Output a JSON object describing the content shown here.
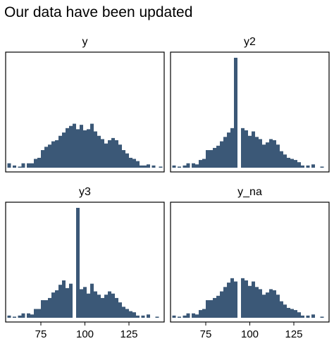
{
  "title": "Our data have been updated",
  "chart_data": {
    "type": "bar",
    "bar_color": "#3b5877",
    "x_ticks": [
      75,
      100,
      125
    ],
    "xlim": [
      55,
      145
    ],
    "ylim": [
      0,
      1
    ],
    "grid": false,
    "layout": "2x2 facets",
    "panels": [
      {
        "label": "y",
        "x": [
          57,
          60,
          63,
          65,
          68,
          70,
          72,
          74,
          76,
          78,
          80,
          82,
          84,
          86,
          88,
          90,
          92,
          94,
          96,
          98,
          100,
          102,
          104,
          106,
          108,
          110,
          112,
          114,
          116,
          118,
          120,
          122,
          124,
          126,
          128,
          130,
          132,
          134,
          136,
          139,
          143
        ],
        "values": [
          0.04,
          0.02,
          0.01,
          0.04,
          0.04,
          0.04,
          0.08,
          0.09,
          0.16,
          0.19,
          0.21,
          0.24,
          0.25,
          0.29,
          0.32,
          0.36,
          0.38,
          0.4,
          0.35,
          0.39,
          0.34,
          0.35,
          0.4,
          0.33,
          0.29,
          0.26,
          0.22,
          0.25,
          0.27,
          0.25,
          0.21,
          0.16,
          0.13,
          0.09,
          0.08,
          0.06,
          0.02,
          0.02,
          0.03,
          0.02,
          0.01
        ]
      },
      {
        "label": "y2",
        "x": [
          57,
          60,
          63,
          65,
          68,
          70,
          72,
          74,
          76,
          78,
          80,
          82,
          84,
          86,
          88,
          90,
          92,
          96,
          98,
          100,
          102,
          104,
          106,
          108,
          110,
          112,
          114,
          116,
          118,
          120,
          122,
          124,
          126,
          128,
          130,
          133,
          136,
          141
        ],
        "values": [
          0.02,
          0.01,
          0.02,
          0.04,
          0.04,
          0.03,
          0.07,
          0.08,
          0.16,
          0.16,
          0.18,
          0.2,
          0.24,
          0.28,
          0.32,
          0.36,
          1.0,
          0.36,
          0.34,
          0.29,
          0.33,
          0.28,
          0.26,
          0.21,
          0.23,
          0.26,
          0.25,
          0.21,
          0.15,
          0.12,
          0.09,
          0.08,
          0.07,
          0.05,
          0.02,
          0.02,
          0.03,
          0.01
        ]
      },
      {
        "label": "y3",
        "x": [
          57,
          60,
          63,
          65,
          68,
          70,
          72,
          74,
          76,
          78,
          80,
          82,
          84,
          86,
          88,
          90,
          92,
          96,
          98,
          100,
          102,
          104,
          106,
          108,
          110,
          112,
          114,
          116,
          118,
          120,
          122,
          124,
          126,
          128,
          130,
          133,
          136,
          141
        ],
        "values": [
          0.02,
          0.01,
          0.02,
          0.04,
          0.04,
          0.03,
          0.08,
          0.08,
          0.16,
          0.16,
          0.18,
          0.23,
          0.25,
          0.3,
          0.34,
          0.27,
          0.31,
          1.0,
          0.26,
          0.28,
          0.22,
          0.31,
          0.24,
          0.21,
          0.18,
          0.21,
          0.24,
          0.22,
          0.18,
          0.14,
          0.1,
          0.08,
          0.06,
          0.05,
          0.02,
          0.02,
          0.03,
          0.01
        ]
      },
      {
        "label": "y_na",
        "x": [
          57,
          60,
          63,
          65,
          68,
          70,
          72,
          74,
          76,
          78,
          80,
          82,
          84,
          86,
          88,
          90,
          92,
          96,
          98,
          100,
          102,
          104,
          106,
          108,
          110,
          112,
          114,
          116,
          118,
          120,
          122,
          124,
          126,
          128,
          130,
          133,
          136,
          141
        ],
        "values": [
          0.02,
          0.01,
          0.02,
          0.04,
          0.04,
          0.03,
          0.07,
          0.08,
          0.16,
          0.16,
          0.18,
          0.2,
          0.24,
          0.28,
          0.32,
          0.36,
          0.33,
          0.36,
          0.34,
          0.29,
          0.33,
          0.28,
          0.26,
          0.21,
          0.23,
          0.26,
          0.25,
          0.21,
          0.15,
          0.12,
          0.09,
          0.08,
          0.07,
          0.05,
          0.02,
          0.02,
          0.03,
          0.01
        ]
      }
    ]
  }
}
